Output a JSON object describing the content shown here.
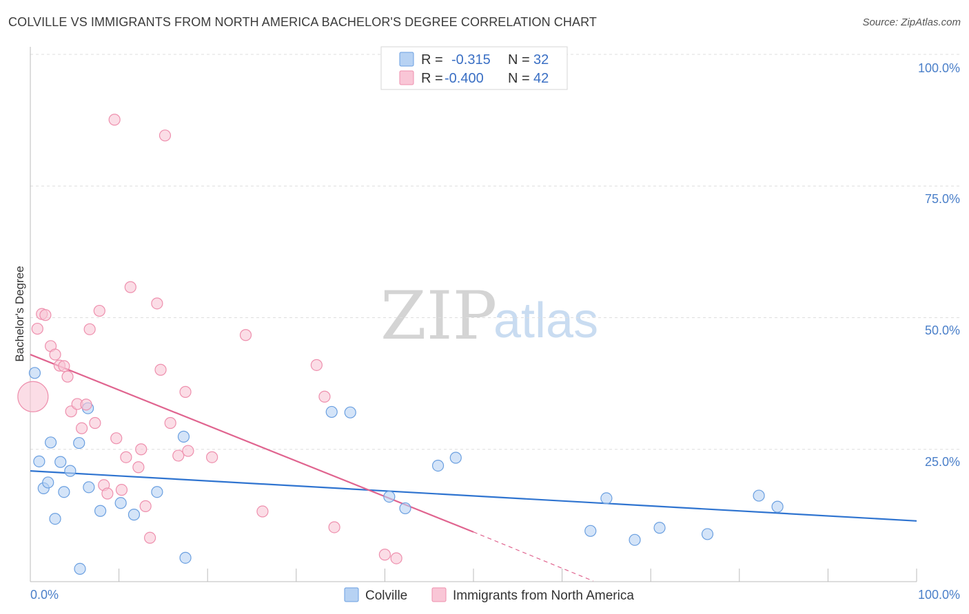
{
  "header": {
    "title": "COLVILLE VS IMMIGRANTS FROM NORTH AMERICA BACHELOR'S DEGREE CORRELATION CHART",
    "source": "Source: ZipAtlas.com"
  },
  "watermark": {
    "zip": "ZIP",
    "atlas": "atlas"
  },
  "legend": {
    "r_label": "R =",
    "n_label": "N =",
    "items": [
      {
        "name": "Colville",
        "r": "-0.315",
        "n": "32",
        "fill": "#b7d2f3",
        "stroke": "#6a9fe0"
      },
      {
        "name": "Immigrants from North America",
        "r": "-0.400",
        "n": "42",
        "fill": "#f9c6d6",
        "stroke": "#ee8fad"
      }
    ]
  },
  "colors": {
    "blue_line": "#2f74d0",
    "pink_line": "#e0648f",
    "axis_text": "#4a7fc9",
    "grid": "#dedede"
  },
  "chart_data": {
    "type": "scatter",
    "title": "COLVILLE VS IMMIGRANTS FROM NORTH AMERICA BACHELOR'S DEGREE CORRELATION CHART",
    "xlabel": "",
    "ylabel": "Bachelor's Degree",
    "xlim": [
      0,
      100
    ],
    "ylim": [
      0,
      100
    ],
    "x_tick_labels": [
      "0.0%",
      "100.0%"
    ],
    "y_ticks": [
      25,
      50,
      75,
      100
    ],
    "y_tick_labels": [
      "25.0%",
      "50.0%",
      "75.0%",
      "100.0%"
    ],
    "grid": true,
    "series": [
      {
        "name": "Colville",
        "color": "#6a9fe0",
        "points": [
          [
            0.5,
            39.5
          ],
          [
            1.0,
            22.7
          ],
          [
            1.5,
            17.6
          ],
          [
            2.0,
            18.7
          ],
          [
            2.3,
            26.3
          ],
          [
            2.8,
            11.8
          ],
          [
            3.4,
            22.6
          ],
          [
            3.8,
            16.9
          ],
          [
            4.5,
            20.9
          ],
          [
            5.5,
            26.2
          ],
          [
            5.6,
            2.3
          ],
          [
            6.5,
            32.8
          ],
          [
            6.6,
            17.8
          ],
          [
            7.9,
            13.3
          ],
          [
            10.2,
            14.8
          ],
          [
            11.7,
            12.6
          ],
          [
            14.3,
            16.9
          ],
          [
            17.3,
            27.4
          ],
          [
            17.5,
            4.4
          ],
          [
            34.0,
            32.1
          ],
          [
            36.1,
            32.0
          ],
          [
            40.5,
            16.0
          ],
          [
            42.3,
            13.8
          ],
          [
            46.0,
            21.9
          ],
          [
            48.0,
            23.4
          ],
          [
            63.2,
            9.5
          ],
          [
            65.0,
            15.7
          ],
          [
            68.2,
            7.8
          ],
          [
            71.0,
            10.1
          ],
          [
            76.4,
            8.9
          ],
          [
            82.2,
            16.2
          ],
          [
            84.3,
            14.1
          ]
        ]
      },
      {
        "name": "Immigrants from North America",
        "color": "#ee8fad",
        "points": [
          [
            0.3,
            35.0
          ],
          [
            0.8,
            47.9
          ],
          [
            1.3,
            50.7
          ],
          [
            1.7,
            50.5
          ],
          [
            2.3,
            44.6
          ],
          [
            2.8,
            43.0
          ],
          [
            3.3,
            40.9
          ],
          [
            3.8,
            40.8
          ],
          [
            4.2,
            38.8
          ],
          [
            4.6,
            32.2
          ],
          [
            5.3,
            33.6
          ],
          [
            5.8,
            29.0
          ],
          [
            6.3,
            33.5
          ],
          [
            6.7,
            47.8
          ],
          [
            7.3,
            30.0
          ],
          [
            7.8,
            51.3
          ],
          [
            8.3,
            18.2
          ],
          [
            8.7,
            16.6
          ],
          [
            9.5,
            87.6
          ],
          [
            9.7,
            27.1
          ],
          [
            10.3,
            17.3
          ],
          [
            10.8,
            23.5
          ],
          [
            11.3,
            55.8
          ],
          [
            12.2,
            21.6
          ],
          [
            12.5,
            25.0
          ],
          [
            13.0,
            14.2
          ],
          [
            13.5,
            8.2
          ],
          [
            14.3,
            52.7
          ],
          [
            14.7,
            40.1
          ],
          [
            15.2,
            84.6
          ],
          [
            15.8,
            30.0
          ],
          [
            16.7,
            23.8
          ],
          [
            17.5,
            35.9
          ],
          [
            17.8,
            24.7
          ],
          [
            20.5,
            23.5
          ],
          [
            24.3,
            46.7
          ],
          [
            26.2,
            13.2
          ],
          [
            32.3,
            41.0
          ],
          [
            33.2,
            35.0
          ],
          [
            34.3,
            10.2
          ],
          [
            40.0,
            5.0
          ],
          [
            41.3,
            4.3
          ]
        ],
        "big_point_index": 0
      }
    ],
    "trendlines": [
      {
        "series": "Colville",
        "x": [
          0,
          100
        ],
        "y": [
          20.9,
          11.4
        ],
        "style": "solid"
      },
      {
        "series": "Immigrants from North America",
        "x": [
          0,
          50
        ],
        "y": [
          43.0,
          9.3
        ],
        "style": "solid"
      },
      {
        "series": "Immigrants from North America",
        "x": [
          50,
          63.5
        ],
        "y": [
          9.3,
          0
        ],
        "style": "dashed"
      }
    ]
  }
}
